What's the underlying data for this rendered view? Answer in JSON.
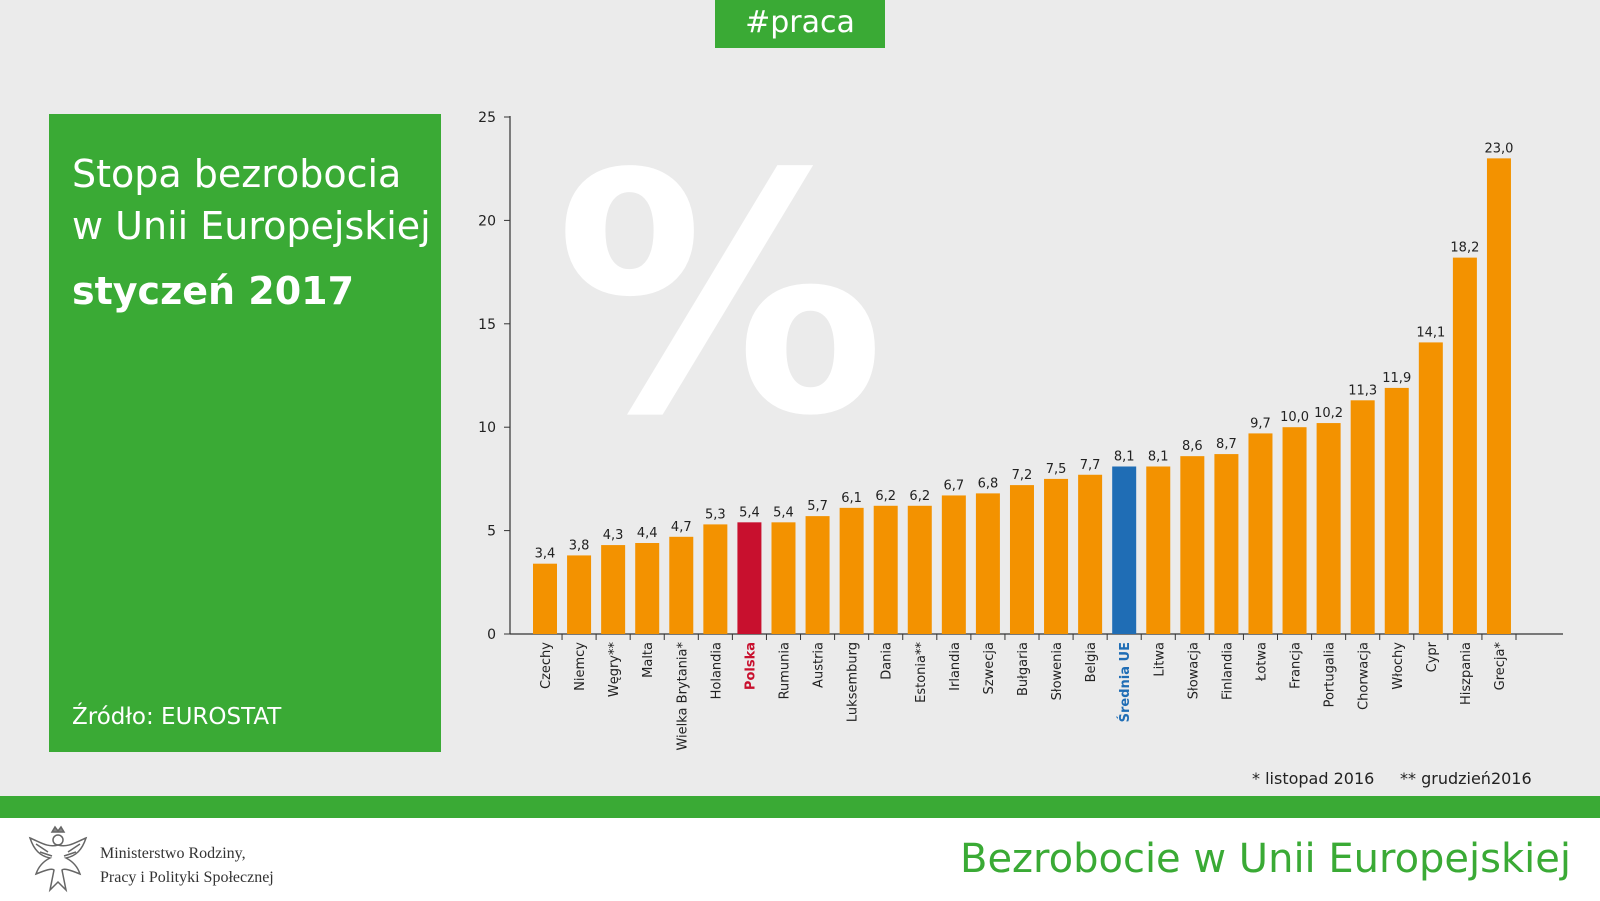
{
  "hashtag": "#praca",
  "panel": {
    "title_line1": "Stopa bezrobocia",
    "title_line2": "w Unii Europejskiej",
    "subtitle": "styczeń 2017",
    "source": "Źródło: EUROSTAT"
  },
  "watermark": "%",
  "colors": {
    "green": "#3aaa35",
    "bar": "#f39200",
    "poland": "#c8102e",
    "eu_average": "#1f6db5"
  },
  "chart_data": {
    "type": "bar",
    "ylim": [
      0,
      25
    ],
    "yticks": [
      0,
      5,
      10,
      15,
      20,
      25
    ],
    "grid": false,
    "categories": [
      "Czechy",
      "Niemcy",
      "Węgry**",
      "Malta",
      "Wielka Brytania*",
      "Holandia",
      "Polska",
      "Rumunia",
      "Austria",
      "Luksemburg",
      "Dania",
      "Estonia**",
      "Irlandia",
      "Szwecja",
      "Bułgaria",
      "Słowenia",
      "Belgia",
      "Średnia UE",
      "Litwa",
      "Słowacja",
      "Finlandia",
      "Łotwa",
      "Francja",
      "Portugalia",
      "Chorwacja",
      "Włochy",
      "Cypr",
      "Hiszpania",
      "Grecja*"
    ],
    "values": [
      3.4,
      3.8,
      4.3,
      4.4,
      4.7,
      5.3,
      5.4,
      5.4,
      5.7,
      6.1,
      6.2,
      6.2,
      6.7,
      6.8,
      7.2,
      7.5,
      7.7,
      8.1,
      8.1,
      8.6,
      8.7,
      9.7,
      10.0,
      10.2,
      11.3,
      11.9,
      14.1,
      18.2,
      23.0
    ],
    "value_labels": [
      "3,4",
      "3,8",
      "4,3",
      "4,4",
      "4,7",
      "5,3",
      "5,4",
      "5,4",
      "5,7",
      "6,1",
      "6,2",
      "6,2",
      "6,7",
      "6,8",
      "7,2",
      "7,5",
      "7,7",
      "8,1",
      "8,1",
      "8,6",
      "8,7",
      "9,7",
      "10,0",
      "10,2",
      "11,3",
      "11,9",
      "14,1",
      "18,2",
      "23,0"
    ],
    "highlight": {
      "Polska": "poland",
      "Średnia UE": "eu_average"
    }
  },
  "footnotes": {
    "note1": "* listopad 2016",
    "note2": "** grudzień2016"
  },
  "footer": {
    "ministry_line1": "Ministerstwo Rodziny,",
    "ministry_line2": "Pracy i Polityki Społecznej",
    "title": "Bezrobocie w Unii Europejskiej"
  },
  "icons": {
    "logo": "polish-eagle-emblem-icon"
  }
}
